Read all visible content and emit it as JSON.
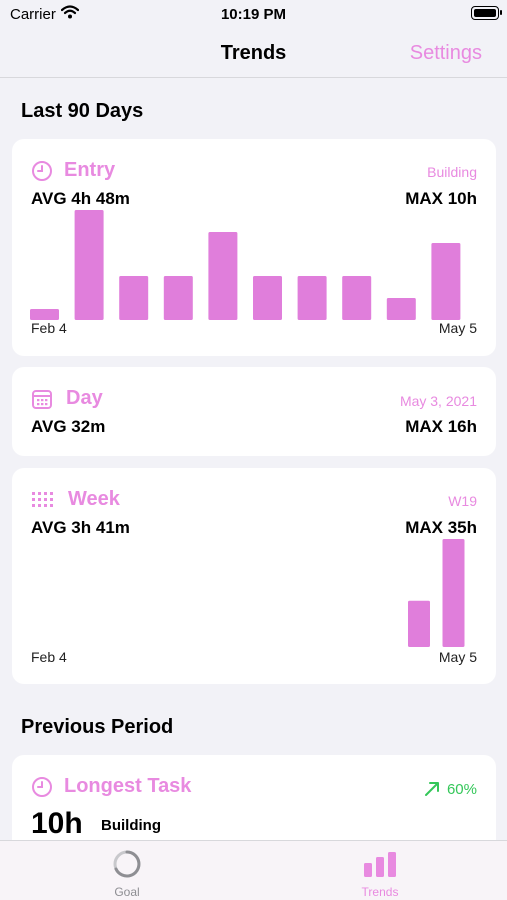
{
  "status_bar": {
    "carrier": "Carrier",
    "time": "10:19 PM"
  },
  "nav": {
    "title": "Trends",
    "settings_label": "Settings"
  },
  "sections": {
    "last_period_title": "Last 90 Days",
    "previous_title": "Previous Period"
  },
  "entry_card": {
    "name": "Entry",
    "tag": "Building",
    "avg": "AVG 4h 48m",
    "max": "MAX 10h",
    "start_label": "Feb 4",
    "end_label": "May 5",
    "icon": "clock-icon"
  },
  "day_card": {
    "name": "Day",
    "tag": "May 3, 2021",
    "avg": "AVG 32m",
    "max": "MAX 16h",
    "icon": "calendar-icon"
  },
  "week_card": {
    "name": "Week",
    "tag": "W19",
    "avg": "AVG 3h 41m",
    "max": "MAX 35h",
    "start_label": "Feb 4",
    "end_label": "May 5",
    "icon": "grid-dots-icon"
  },
  "longest_card": {
    "name": "Longest Task",
    "value": "10h",
    "sub": "Building",
    "change": "60%",
    "icon": "clock-icon",
    "change_icon": "arrow-up-right-icon"
  },
  "tab_bar": {
    "goal_label": "Goal",
    "trends_label": "Trends",
    "active": "Trends"
  },
  "colors": {
    "accent": "#e88ae0",
    "bar": "#e07edb",
    "positive": "#34c759",
    "background": "#f2f2f7"
  },
  "chart_data": [
    {
      "type": "bar",
      "name": "entry",
      "unit": "h",
      "ymax": 10,
      "values": [
        1,
        10,
        4,
        4,
        8,
        4,
        4,
        4,
        2,
        7
      ]
    },
    {
      "type": "bar",
      "name": "week",
      "unit": "h",
      "ymax": 35,
      "values": [
        0,
        0,
        0,
        0,
        0,
        0,
        0,
        0,
        0,
        0,
        0,
        0,
        0,
        0,
        0,
        0,
        0,
        0,
        15,
        35
      ]
    }
  ]
}
